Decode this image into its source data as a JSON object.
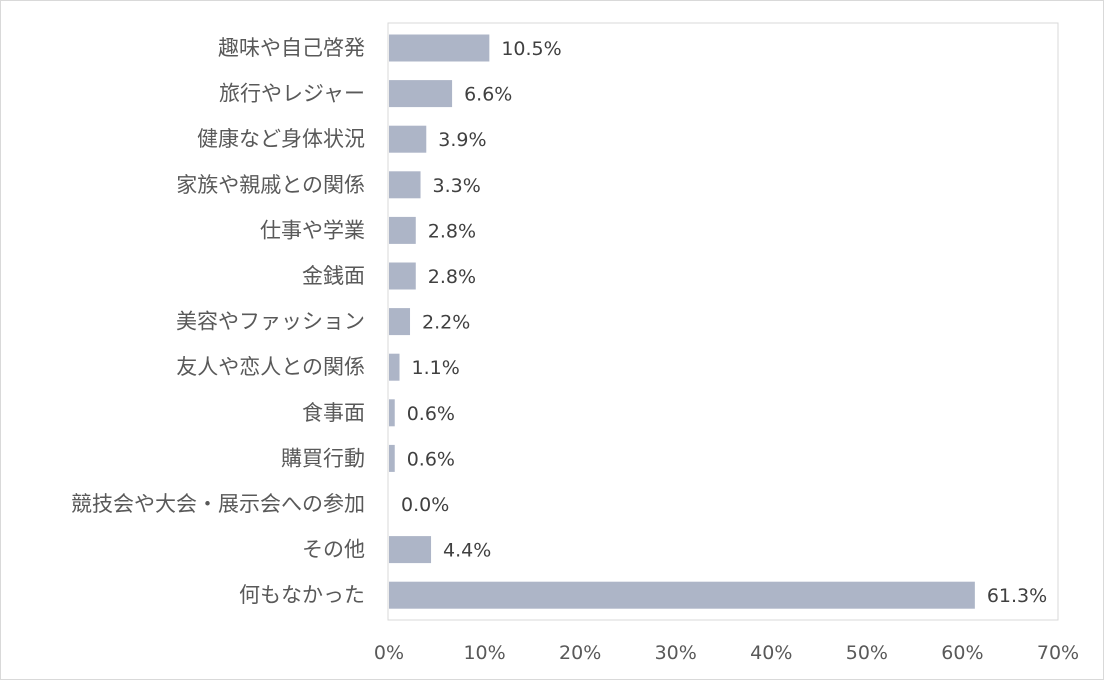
{
  "chart_data": {
    "type": "bar",
    "orientation": "horizontal",
    "categories": [
      "趣味や自己啓発",
      "旅行やレジャー",
      "健康など身体状況",
      "家族や親戚との関係",
      "仕事や学業",
      "金銭面",
      "美容やファッション",
      "友人や恋人との関係",
      "食事面",
      "購買行動",
      "競技会や大会・展示会への参加",
      "その他",
      "何もなかった"
    ],
    "values": [
      10.5,
      6.6,
      3.9,
      3.3,
      2.8,
      2.8,
      2.2,
      1.1,
      0.6,
      0.6,
      0.0,
      4.4,
      61.3
    ],
    "value_labels": [
      "10.5%",
      "6.6%",
      "3.9%",
      "3.3%",
      "2.8%",
      "2.8%",
      "2.2%",
      "1.1%",
      "0.6%",
      "0.6%",
      "0.0%",
      "4.4%",
      "61.3%"
    ],
    "xlim": [
      0,
      70
    ],
    "x_ticks": [
      "0%",
      "10%",
      "20%",
      "30%",
      "40%",
      "50%",
      "60%",
      "70%"
    ],
    "title": "",
    "xlabel": "",
    "ylabel": "",
    "grid": false,
    "legend": "none",
    "bar_color": "#adb5c7",
    "border_color": "#d9d9d9"
  }
}
